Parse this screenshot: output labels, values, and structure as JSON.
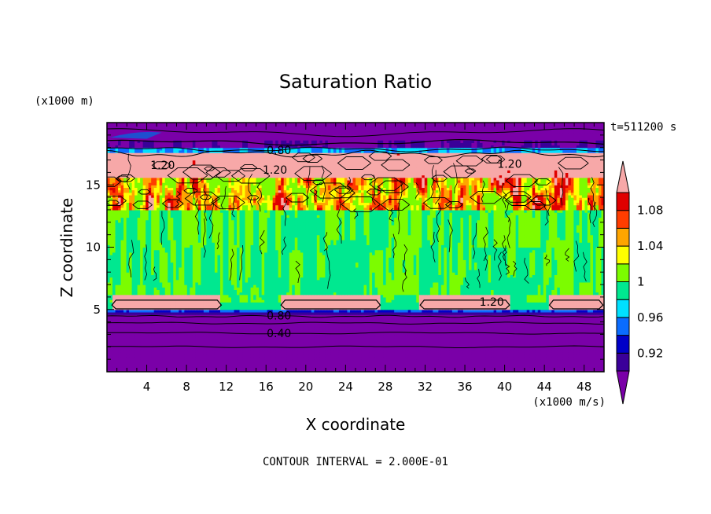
{
  "chart_data": {
    "type": "heatmap",
    "title": "Saturation Ratio",
    "xlabel": "X coordinate",
    "ylabel": "Z coordinate",
    "x_unit": "(x1000 m/s)",
    "y_unit": "(x1000 m)",
    "time_label": "t=511200 s",
    "footer": "CONTOUR INTERVAL = 2.000E-01",
    "xlim": [
      0,
      50
    ],
    "ylim": [
      0,
      20
    ],
    "x_ticks": [
      4,
      8,
      12,
      16,
      20,
      24,
      28,
      32,
      36,
      40,
      44,
      48
    ],
    "y_ticks": [
      5,
      10,
      15
    ],
    "colorbar": {
      "levels": [
        0.9,
        0.92,
        0.94,
        0.96,
        0.98,
        1.0,
        1.02,
        1.04,
        1.06,
        1.08,
        1.1
      ],
      "labels": [
        "0.92",
        "0.96",
        "1",
        "1.04",
        "1.08"
      ],
      "label_values": [
        0.92,
        0.96,
        1.0,
        1.04,
        1.08
      ],
      "colors": [
        "#7a00a8",
        "#3a0099",
        "#0000c8",
        "#0a6cff",
        "#00e0ff",
        "#00e890",
        "#7cfc00",
        "#ffff00",
        "#ffa500",
        "#ff3d00",
        "#e00000",
        "#f7a8a8"
      ]
    },
    "contour_labels": [
      {
        "text": "0.80",
        "x": 17.3,
        "z": 17.8
      },
      {
        "text": "1.20",
        "x": 5.6,
        "z": 16.6
      },
      {
        "text": "1.20",
        "x": 16.9,
        "z": 16.2
      },
      {
        "text": "1.20",
        "x": 40.5,
        "z": 16.7
      },
      {
        "text": "1.20",
        "x": 38.7,
        "z": 5.6
      },
      {
        "text": "0.80",
        "x": 17.3,
        "z": 4.5
      },
      {
        "text": "0.40",
        "x": 17.3,
        "z": 3.1
      }
    ]
  }
}
